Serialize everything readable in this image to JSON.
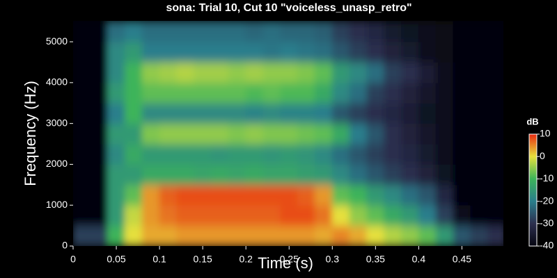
{
  "chart_data": {
    "type": "heatmap",
    "title": "sona: Trial 10, Cut 10 \"voiceless_unasp_retro\"",
    "xlabel": "Time (s)",
    "ylabel": "Frequency (Hz)",
    "xlim": [
      0,
      0.498
    ],
    "ylim": [
      0,
      5512
    ],
    "xticks": [
      0,
      0.05,
      0.1,
      0.15,
      0.2,
      0.25,
      0.3,
      0.35,
      0.4,
      0.45
    ],
    "yticks": [
      0,
      1000,
      2000,
      3000,
      4000,
      5000
    ],
    "colorbar_label": "dB",
    "zlim": [
      -40,
      10
    ],
    "zticks": [
      10,
      0,
      -10,
      -20,
      -30,
      -40
    ],
    "colors": [
      "#050510",
      "#2c2f4e",
      "#2a7e8c",
      "#3cb45a",
      "#e6e03c",
      "#e82a10"
    ],
    "x": [
      0.01,
      0.03,
      0.05,
      0.07,
      0.09,
      0.11,
      0.13,
      0.15,
      0.17,
      0.19,
      0.21,
      0.23,
      0.25,
      0.27,
      0.29,
      0.31,
      0.33,
      0.35,
      0.37,
      0.39,
      0.41,
      0.43,
      0.45,
      0.47,
      0.49
    ],
    "y": [
      250,
      750,
      1250,
      1750,
      2250,
      2750,
      3250,
      3750,
      4250,
      4750,
      5250
    ],
    "z": [
      [
        -28,
        -40,
        -40,
        -40,
        -40,
        -40,
        -40,
        -40,
        -40,
        -40,
        -40
      ],
      [
        -28,
        -40,
        -40,
        -40,
        -40,
        -40,
        -40,
        -40,
        -40,
        -40,
        -40
      ],
      [
        -10,
        -15,
        -15,
        -15,
        -18,
        -15,
        -20,
        -15,
        -18,
        -18,
        -22
      ],
      [
        0,
        -2,
        -8,
        -15,
        -12,
        -15,
        -10,
        -10,
        -10,
        -15,
        -20
      ],
      [
        3,
        4,
        4,
        -12,
        -15,
        -6,
        -18,
        -8,
        -5,
        -20,
        -22
      ],
      [
        3,
        6,
        7,
        -12,
        -15,
        -5,
        -18,
        -8,
        -4,
        -20,
        -22
      ],
      [
        4,
        7,
        8,
        -12,
        -15,
        -5,
        -18,
        -8,
        -3,
        -20,
        -22
      ],
      [
        4,
        7,
        8,
        -13,
        -15,
        -5,
        -18,
        -8,
        -4,
        -20,
        -22
      ],
      [
        4,
        7,
        8,
        -12,
        -16,
        -5,
        -18,
        -8,
        -4,
        -20,
        -22
      ],
      [
        4,
        7,
        8,
        -13,
        -15,
        -6,
        -18,
        -8,
        -5,
        -20,
        -22
      ],
      [
        4,
        7,
        8,
        -12,
        -15,
        -5,
        -19,
        -9,
        -4,
        -20,
        -23
      ],
      [
        4,
        7,
        8,
        -13,
        -16,
        -6,
        -18,
        -8,
        -5,
        -21,
        -22
      ],
      [
        4,
        8,
        8,
        -13,
        -15,
        -6,
        -19,
        -9,
        -5,
        -20,
        -23
      ],
      [
        4,
        8,
        7,
        -14,
        -16,
        -7,
        -19,
        -9,
        -6,
        -21,
        -23
      ],
      [
        3,
        6,
        4,
        -15,
        -18,
        -8,
        -20,
        -12,
        -8,
        -22,
        -24
      ],
      [
        5,
        0,
        -8,
        -18,
        -22,
        -12,
        -25,
        -18,
        -15,
        -25,
        -28
      ],
      [
        3,
        -5,
        -10,
        -22,
        -25,
        -20,
        -28,
        -22,
        -18,
        -28,
        -30
      ],
      [
        0,
        -8,
        -15,
        -25,
        -28,
        -25,
        -30,
        -28,
        -22,
        -30,
        -32
      ],
      [
        -3,
        -12,
        -18,
        -28,
        -30,
        -30,
        -32,
        -30,
        -28,
        -33,
        -35
      ],
      [
        -5,
        -15,
        -22,
        -30,
        -32,
        -33,
        -34,
        -33,
        -30,
        -35,
        -37
      ],
      [
        -8,
        -20,
        -25,
        -33,
        -35,
        -36,
        -37,
        -36,
        -34,
        -38,
        -38
      ],
      [
        -15,
        -28,
        -32,
        -37,
        -38,
        -38,
        -38,
        -38,
        -38,
        -39,
        -39
      ],
      [
        -25,
        -38,
        -40,
        -40,
        -40,
        -40,
        -40,
        -40,
        -40,
        -40,
        -40
      ],
      [
        -28,
        -40,
        -40,
        -40,
        -40,
        -40,
        -40,
        -40,
        -40,
        -40,
        -40
      ],
      [
        -30,
        -40,
        -40,
        -40,
        -40,
        -40,
        -40,
        -40,
        -40,
        -40,
        -40
      ]
    ]
  }
}
